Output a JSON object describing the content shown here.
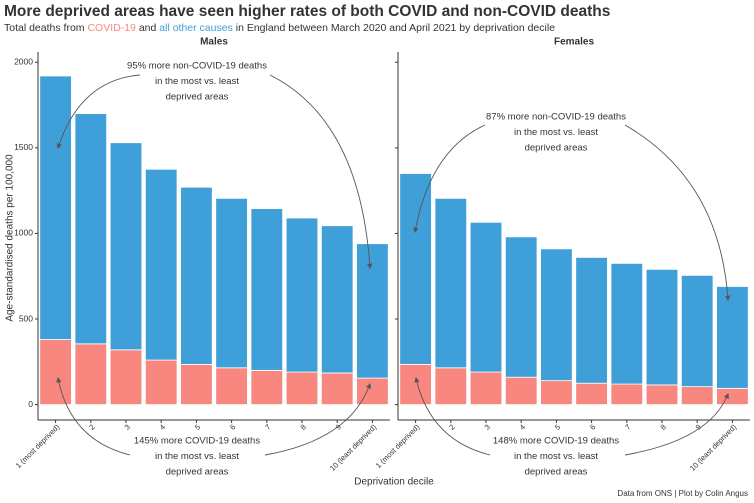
{
  "chart_data": {
    "type": "bar",
    "stacked": true,
    "title": "More deprived areas have seen higher rates of both COVID and non-COVID deaths",
    "subtitle_parts": [
      "Total deaths from ",
      " and ",
      " in England between March 2020 and April 2021 by deprivation decile"
    ],
    "ylabel": "Age-standardised deaths per 100,000",
    "xlabel": "Deprivation decile",
    "caption": "Data from ONS | Plot by Colin Angus",
    "ylim": [
      -90,
      2060
    ],
    "yticks": [
      0,
      500,
      1000,
      1500,
      2000
    ],
    "categories": [
      "1 (most deprived)",
      "2",
      "3",
      "4",
      "5",
      "6",
      "7",
      "8",
      "9",
      "10 (least deprived)"
    ],
    "series": [
      {
        "name": "COVID-19",
        "color": "#f8877f"
      },
      {
        "name": "all other causes",
        "color": "#3f9fd8"
      }
    ],
    "facets": [
      {
        "title": "Males",
        "values": [
          [
            380,
            355,
            320,
            260,
            235,
            215,
            200,
            190,
            185,
            155
          ],
          [
            1540,
            1345,
            1210,
            1115,
            1035,
            990,
            945,
            900,
            860,
            785
          ]
        ],
        "annotations": [
          {
            "lines": [
              "95% more non-COVID-19 deaths",
              "in the most vs. least",
              "deprived areas"
            ]
          },
          {
            "lines": [
              "145% more COVID-19 deaths",
              "in the most vs. least",
              "deprived areas"
            ]
          }
        ]
      },
      {
        "title": "Females",
        "values": [
          [
            235,
            215,
            190,
            160,
            140,
            125,
            120,
            115,
            105,
            95
          ],
          [
            1115,
            990,
            875,
            820,
            770,
            735,
            705,
            675,
            650,
            595
          ]
        ],
        "annotations": [
          {
            "lines": [
              "87% more non-COVID-19 deaths",
              "in the most vs. least",
              "deprived areas"
            ]
          },
          {
            "lines": [
              "148% more COVID-19 deaths",
              "in the most vs. least",
              "deprived areas"
            ]
          }
        ]
      }
    ]
  }
}
